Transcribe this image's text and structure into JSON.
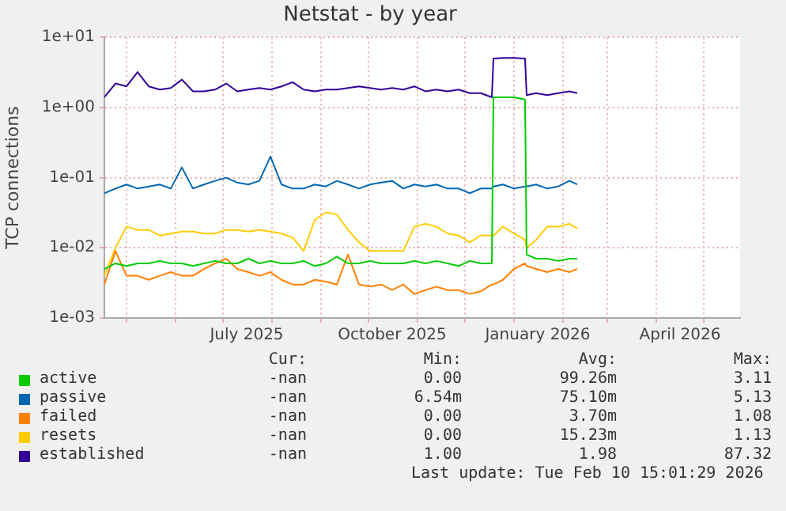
{
  "chart_data": {
    "type": "line",
    "title": "Netstat - by year",
    "ylabel": "TCP connections",
    "log": "y",
    "grid": true,
    "legend": "bottom left",
    "marker": "none",
    "line_style": "solid",
    "xlim": [
      "2025-04-17",
      "2026-05-24"
    ],
    "xticks": [
      {
        "value": "2025-05-01",
        "label": null
      },
      {
        "value": "2025-06-01",
        "label": null
      },
      {
        "value": "2025-07-01",
        "label": null
      },
      {
        "value": "2025-07-16",
        "label": "July 2025"
      },
      {
        "value": "2025-08-01",
        "label": null
      },
      {
        "value": "2025-09-01",
        "label": null
      },
      {
        "value": "2025-10-01",
        "label": null
      },
      {
        "value": "2025-10-16",
        "label": "October 2025"
      },
      {
        "value": "2025-11-01",
        "label": null
      },
      {
        "value": "2025-12-01",
        "label": null
      },
      {
        "value": "2026-01-01",
        "label": null
      },
      {
        "value": "2026-01-16",
        "label": "January 2026"
      },
      {
        "value": "2026-02-01",
        "label": null
      },
      {
        "value": "2026-03-01",
        "label": null
      },
      {
        "value": "2026-04-01",
        "label": null
      },
      {
        "value": "2026-04-16",
        "label": "April 2026"
      },
      {
        "value": "2026-05-01",
        "label": null
      }
    ],
    "ylim": [
      0.001,
      10
    ],
    "yticks": [
      {
        "value": 0.001,
        "label": "1e-03"
      },
      {
        "value": 0.01,
        "label": "1e-02"
      },
      {
        "value": 0.1,
        "label": "1e-01"
      },
      {
        "value": 1,
        "label": "1e+00"
      },
      {
        "value": 10,
        "label": "1e+01"
      }
    ],
    "x": [
      "2025-04-17",
      "2025-04-24",
      "2025-05-01",
      "2025-05-08",
      "2025-05-15",
      "2025-05-22",
      "2025-05-29",
      "2025-06-05",
      "2025-06-12",
      "2025-06-19",
      "2025-06-26",
      "2025-07-03",
      "2025-07-10",
      "2025-07-17",
      "2025-07-24",
      "2025-07-31",
      "2025-08-07",
      "2025-08-14",
      "2025-08-21",
      "2025-08-28",
      "2025-09-04",
      "2025-09-11",
      "2025-09-18",
      "2025-09-25",
      "2025-10-02",
      "2025-10-09",
      "2025-10-16",
      "2025-10-23",
      "2025-10-30",
      "2025-11-06",
      "2025-11-13",
      "2025-11-20",
      "2025-11-27",
      "2025-12-04",
      "2025-12-11",
      "2025-12-18",
      "2025-12-19",
      "2025-12-25",
      "2026-01-01",
      "2026-01-08",
      "2026-01-09",
      "2026-01-15",
      "2026-01-22",
      "2026-01-29",
      "2026-02-05",
      "2026-02-10"
    ],
    "series": [
      {
        "name": "active",
        "color": "#00cc00",
        "values": [
          0.005,
          0.006,
          0.0055,
          0.006,
          0.006,
          0.0065,
          0.006,
          0.006,
          0.0055,
          0.006,
          0.0065,
          0.006,
          0.006,
          0.007,
          0.006,
          0.0065,
          0.006,
          0.006,
          0.0065,
          0.0055,
          0.006,
          0.0075,
          0.006,
          0.006,
          0.0065,
          0.006,
          0.006,
          0.006,
          0.0065,
          0.006,
          0.0065,
          0.006,
          0.0055,
          0.0065,
          0.006,
          0.006,
          1.4,
          1.4,
          1.4,
          1.3,
          0.008,
          0.007,
          0.007,
          0.0065,
          0.007,
          0.007
        ]
      },
      {
        "name": "passive",
        "color": "#0066b3",
        "values": [
          0.06,
          0.07,
          0.08,
          0.07,
          0.075,
          0.08,
          0.07,
          0.14,
          0.07,
          0.08,
          0.09,
          0.1,
          0.085,
          0.08,
          0.09,
          0.2,
          0.08,
          0.07,
          0.07,
          0.08,
          0.075,
          0.09,
          0.08,
          0.07,
          0.08,
          0.085,
          0.09,
          0.07,
          0.08,
          0.075,
          0.08,
          0.07,
          0.07,
          0.06,
          0.07,
          0.07,
          0.075,
          0.08,
          0.07,
          0.075,
          0.075,
          0.08,
          0.07,
          0.075,
          0.09,
          0.08
        ]
      },
      {
        "name": "failed",
        "color": "#ff8000",
        "values": [
          0.003,
          0.009,
          0.004,
          0.004,
          0.0035,
          0.004,
          0.0045,
          0.004,
          0.004,
          0.005,
          0.006,
          0.007,
          0.005,
          0.0045,
          0.004,
          0.0045,
          0.0035,
          0.003,
          0.003,
          0.0035,
          0.0033,
          0.003,
          0.008,
          0.003,
          0.0028,
          0.003,
          0.0025,
          0.003,
          0.0022,
          0.0025,
          0.0028,
          0.0025,
          0.0025,
          0.0022,
          0.0024,
          0.003,
          0.003,
          0.0035,
          0.005,
          0.006,
          0.0055,
          0.005,
          0.0045,
          0.005,
          0.0045,
          0.005
        ]
      },
      {
        "name": "resets",
        "color": "#ffcc00",
        "values": [
          0.004,
          0.01,
          0.02,
          0.018,
          0.018,
          0.015,
          0.016,
          0.017,
          0.017,
          0.016,
          0.016,
          0.018,
          0.018,
          0.017,
          0.018,
          0.017,
          0.016,
          0.014,
          0.009,
          0.025,
          0.032,
          0.03,
          0.018,
          0.012,
          0.009,
          0.009,
          0.009,
          0.009,
          0.02,
          0.022,
          0.02,
          0.016,
          0.015,
          0.012,
          0.015,
          0.015,
          0.015,
          0.02,
          0.016,
          0.013,
          0.01,
          0.013,
          0.02,
          0.02,
          0.022,
          0.019
        ]
      },
      {
        "name": "established",
        "color": "#330099",
        "values": [
          1.4,
          2.2,
          2.0,
          3.2,
          2.0,
          1.8,
          1.9,
          2.5,
          1.7,
          1.7,
          1.8,
          2.2,
          1.7,
          1.8,
          1.9,
          1.8,
          2.0,
          2.3,
          1.8,
          1.7,
          1.8,
          1.8,
          1.9,
          2.0,
          1.9,
          1.8,
          1.9,
          1.8,
          2.0,
          1.7,
          1.8,
          1.7,
          1.8,
          1.6,
          1.6,
          1.4,
          5.0,
          5.1,
          5.1,
          5.0,
          1.5,
          1.6,
          1.5,
          1.6,
          1.7,
          1.6
        ]
      }
    ],
    "annotations": [
      "Cur:",
      "Min:",
      "Avg:",
      "Max:",
      "-nan",
      "0.00",
      "99.26m",
      "3.11",
      "-nan",
      "6.54m",
      "75.10m",
      "5.13",
      "-nan",
      "0.00",
      "3.70m",
      "1.08",
      "-nan",
      "0.00",
      "15.23m",
      "1.13",
      "-nan",
      "1.00",
      "1.98",
      "87.32",
      "Last update: Tue Feb 10 15:01:29 2026"
    ]
  }
}
